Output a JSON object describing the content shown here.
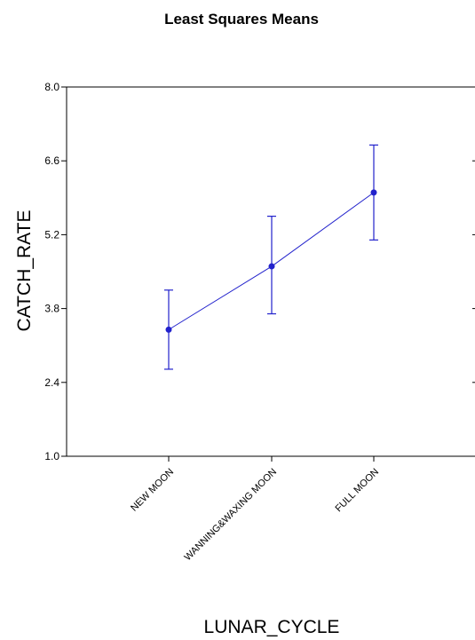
{
  "chart_data": {
    "type": "line",
    "title": "Least Squares Means",
    "xlabel": "LUNAR_CYCLE",
    "ylabel": "CATCH_RATE",
    "ylim": [
      1.0,
      8.0
    ],
    "yticks": [
      "1.0",
      "2.4",
      "3.8",
      "5.2",
      "6.6",
      "8.0"
    ],
    "categories": [
      "NEW MOON",
      "WANNING&WAXING MOON",
      "FULL MOON"
    ],
    "values": [
      3.4,
      4.6,
      6.0
    ],
    "error_low": [
      2.65,
      3.7,
      5.1
    ],
    "error_high": [
      4.15,
      5.55,
      6.9
    ],
    "color": "#2222cc",
    "grid": false
  }
}
